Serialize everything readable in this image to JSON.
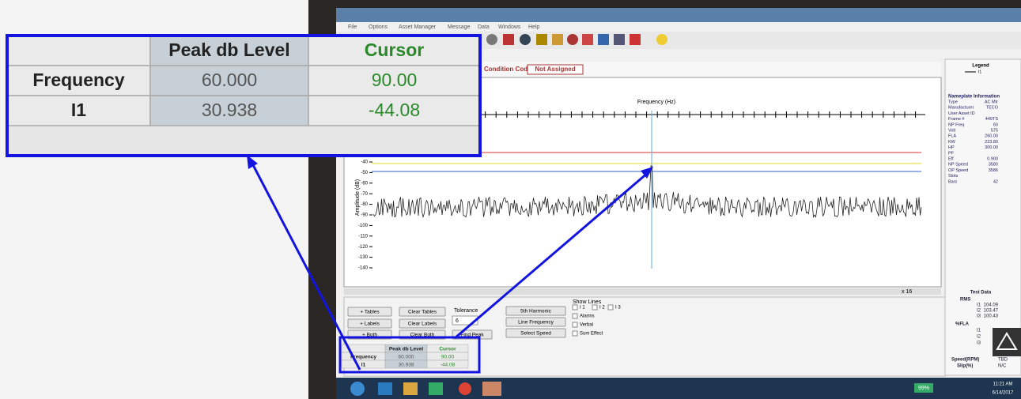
{
  "menu": [
    "File",
    "Options",
    "Asset Manager",
    "Message",
    "Data",
    "Windows",
    "Help"
  ],
  "condition": {
    "label": "Condition Code",
    "value": "Not Assigned"
  },
  "plot": {
    "x_label": "Frequency (Hz)",
    "y_label": "Amplitude (dB)",
    "y_ticks": [
      "-40",
      "-50",
      "-60",
      "-70",
      "-80",
      "-90",
      "-100",
      "-110",
      "-120",
      "-130",
      "-140"
    ],
    "zoom": "x 16"
  },
  "legend": {
    "title": "Legend",
    "entry": "I1"
  },
  "nameplate": {
    "title": "Nameplate Information",
    "rows": [
      [
        "Type",
        "AC Mtr"
      ],
      [
        "Manufacturer",
        "TECO"
      ],
      [
        "User Asset ID",
        ""
      ],
      [
        "Frame #",
        "449TS"
      ],
      [
        "NP Freq",
        "60"
      ],
      [
        "Volt",
        "575"
      ],
      [
        "FLA",
        "260.00"
      ],
      [
        "KW",
        "223.80"
      ],
      [
        "HP",
        "300.00"
      ],
      [
        "PF",
        ""
      ],
      [
        "Eff",
        "0.900"
      ],
      [
        "NP Speed",
        "3580"
      ],
      [
        "OP Speed",
        "3586"
      ],
      [
        "Slots",
        ""
      ],
      [
        "Bars",
        "42"
      ]
    ]
  },
  "controls": {
    "add_tables": "+ Tables",
    "clear_tables": "Clear Tables",
    "add_labels": "+ Labels",
    "clear_labels": "Clear Labels",
    "add_both": "+ Both",
    "clear_both": "Clear Both",
    "tolerance": "Tolerance",
    "tolerance_value": "6",
    "find_peak": "Find Peak",
    "fifth_harmonic": "5th Harmonic",
    "line_frequency": "Line Frequency",
    "select_speed": "Select Speed",
    "show_lines": "Show Lines",
    "i1": "I 1",
    "i2": "I 2",
    "i3": "I 3",
    "alarms": "Alarms",
    "verbal": "Verbal",
    "sum_effect": "Sum Effect"
  },
  "table": {
    "headers": [
      "Peak db Level",
      "Cursor"
    ],
    "rows": [
      [
        "Frequency",
        "60.000",
        "90.00"
      ],
      [
        "I1",
        "30.938",
        "-44.08"
      ]
    ]
  },
  "test_data": {
    "title": "Test Data",
    "rms": "RMS",
    "rms_rows": [
      [
        "I1",
        "104.09"
      ],
      [
        "I2",
        "103.47"
      ],
      [
        "I3",
        "100.43"
      ]
    ],
    "fla": "%FLA",
    "fla_rows": [
      "I1",
      "I2",
      "I3"
    ],
    "speed": "Speed(RPM)",
    "speed_value": "TBD",
    "slip": "Slip(%)",
    "slip_value": "N/C"
  },
  "taskbar": {
    "battery": "99%",
    "time": "11:21 AM",
    "date": "6/14/2017"
  }
}
